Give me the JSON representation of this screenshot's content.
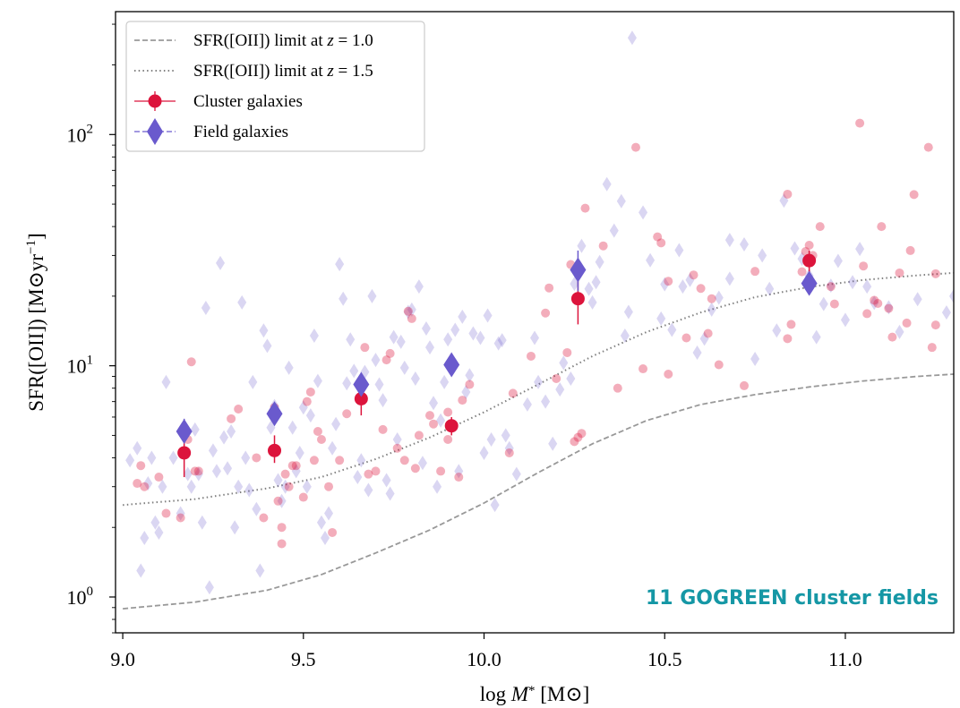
{
  "chart_data": {
    "type": "scatter",
    "xlabel_prefix": "log ",
    "xlabel_var": "M",
    "xlabel_sub": "*",
    "xlabel_unit": " [M⊙]",
    "ylabel_main": "SFR([OII]) [M⊙yr",
    "ylabel_exp": "−1",
    "ylabel_close": "]",
    "xlim": [
      8.98,
      11.3
    ],
    "ylim": [
      0.7,
      340
    ],
    "yscale": "log",
    "x_ticks": [
      "9.0",
      "9.5",
      "10.0",
      "10.5",
      "11.0"
    ],
    "y_ticks": [
      {
        "value": 1,
        "base": "10",
        "exp": "0"
      },
      {
        "value": 10,
        "base": "10",
        "exp": "1"
      },
      {
        "value": 100,
        "base": "10",
        "exp": "2"
      }
    ],
    "annotation": "11 GOGREEN cluster fields",
    "annotation_color": "#1597a5",
    "legend": {
      "position": "top-left",
      "entries": [
        {
          "label_pre": "SFR([OII]) limit at ",
          "label_var": "z",
          "label_post": " = 1.0",
          "style": "dashed",
          "color": "#999999"
        },
        {
          "label_pre": "SFR([OII]) limit at ",
          "label_var": "z",
          "label_post": " = 1.5",
          "style": "dotted",
          "color": "#808080"
        },
        {
          "label_pre": "Cluster galaxies",
          "label_var": "",
          "label_post": "",
          "style": "circle",
          "color": "#dc143c"
        },
        {
          "label_pre": "Field galaxies",
          "label_var": "",
          "label_post": "",
          "style": "diamond",
          "color": "#6a5acd"
        }
      ]
    },
    "limit_curves": [
      {
        "name": "z=1.0",
        "style": "dashed",
        "color": "#999999",
        "x": [
          9.0,
          9.2,
          9.4,
          9.55,
          9.7,
          9.85,
          10.0,
          10.15,
          10.3,
          10.45,
          10.6,
          10.75,
          10.9,
          11.05,
          11.2,
          11.3
        ],
        "y": [
          0.89,
          0.95,
          1.07,
          1.25,
          1.55,
          1.95,
          2.55,
          3.45,
          4.6,
          5.8,
          6.8,
          7.5,
          8.1,
          8.6,
          9.0,
          9.2
        ]
      },
      {
        "name": "z=1.5",
        "style": "dotted",
        "color": "#808080",
        "x": [
          9.0,
          9.2,
          9.4,
          9.55,
          9.7,
          9.85,
          10.0,
          10.15,
          10.3,
          10.45,
          10.6,
          10.75,
          10.9,
          11.05,
          11.2,
          11.3
        ],
        "y": [
          2.5,
          2.65,
          2.95,
          3.3,
          3.95,
          4.9,
          6.3,
          8.3,
          11.0,
          14.0,
          17.0,
          19.8,
          21.9,
          23.5,
          24.6,
          25.2
        ]
      }
    ],
    "cluster_points": {
      "color": "#dc143c",
      "alpha": 0.35,
      "x": [
        9.04,
        9.05,
        9.06,
        9.1,
        9.12,
        9.16,
        9.18,
        9.19,
        9.2,
        9.21,
        9.3,
        9.32,
        9.37,
        9.39,
        9.42,
        9.43,
        9.44,
        9.44,
        9.45,
        9.46,
        9.47,
        9.48,
        9.5,
        9.51,
        9.52,
        9.53,
        9.54,
        9.55,
        9.57,
        9.58,
        9.6,
        9.62,
        9.67,
        9.68,
        9.7,
        9.72,
        9.73,
        9.74,
        9.76,
        9.78,
        9.79,
        9.8,
        9.81,
        9.82,
        9.85,
        9.86,
        9.88,
        9.9,
        9.9,
        9.93,
        9.94,
        9.96,
        10.07,
        10.08,
        10.13,
        10.17,
        10.18,
        10.2,
        10.23,
        10.24,
        10.25,
        10.26,
        10.27,
        10.28,
        10.33,
        10.37,
        10.42,
        10.44,
        10.48,
        10.49,
        10.51,
        10.51,
        10.56,
        10.58,
        10.6,
        10.62,
        10.63,
        10.65,
        10.72,
        10.75,
        10.84,
        10.84,
        10.85,
        10.88,
        10.89,
        10.9,
        10.91,
        10.93,
        10.96,
        10.97,
        11.04,
        11.05,
        11.06,
        11.08,
        11.09,
        11.1,
        11.12,
        11.13,
        11.15,
        11.17,
        11.18,
        11.19,
        11.23,
        11.24,
        11.25,
        11.25
      ],
      "y": [
        3.1,
        3.7,
        3.0,
        3.3,
        2.3,
        2.2,
        4.8,
        10.4,
        3.5,
        3.5,
        5.9,
        6.5,
        4.0,
        2.2,
        6.6,
        2.6,
        1.7,
        2.0,
        3.4,
        3.0,
        3.7,
        3.7,
        2.7,
        7.0,
        7.7,
        3.9,
        5.2,
        4.8,
        3.0,
        1.9,
        3.9,
        6.2,
        12.0,
        3.4,
        3.5,
        5.3,
        10.6,
        11.3,
        4.4,
        3.9,
        17.2,
        16.0,
        3.6,
        5.0,
        6.1,
        5.6,
        3.5,
        4.8,
        6.3,
        3.3,
        7.1,
        8.3,
        4.2,
        7.6,
        11.0,
        16.9,
        21.7,
        8.8,
        11.4,
        27.4,
        4.7,
        4.9,
        5.1,
        48.0,
        33.0,
        8.0,
        88.0,
        9.7,
        36.1,
        34.0,
        9.2,
        23.2,
        13.2,
        24.7,
        21.6,
        13.8,
        19.5,
        10.1,
        8.2,
        25.6,
        13.1,
        55.2,
        15.1,
        25.5,
        31.2,
        33.2,
        30.0,
        40.0,
        22.0,
        18.5,
        112.0,
        27.0,
        16.8,
        19.2,
        18.6,
        40.0,
        17.7,
        13.3,
        25.2,
        15.3,
        31.5,
        55.0,
        88.0,
        12.0,
        25.0,
        15.0
      ]
    },
    "field_points": {
      "color": "#6a5acd",
      "alpha": 0.25,
      "x": [
        9.02,
        9.04,
        9.05,
        9.06,
        9.07,
        9.08,
        9.09,
        9.1,
        9.11,
        9.12,
        9.14,
        9.16,
        9.18,
        9.19,
        9.2,
        9.21,
        9.22,
        9.23,
        9.24,
        9.25,
        9.26,
        9.27,
        9.28,
        9.29,
        9.3,
        9.31,
        9.32,
        9.33,
        9.34,
        9.35,
        9.36,
        9.37,
        9.38,
        9.39,
        9.4,
        9.41,
        9.42,
        9.43,
        9.44,
        9.45,
        9.46,
        9.47,
        9.48,
        9.49,
        9.5,
        9.51,
        9.52,
        9.53,
        9.54,
        9.55,
        9.56,
        9.57,
        9.58,
        9.59,
        9.6,
        9.61,
        9.62,
        9.63,
        9.64,
        9.65,
        9.66,
        9.67,
        9.68,
        9.69,
        9.7,
        9.71,
        9.72,
        9.73,
        9.74,
        9.75,
        9.76,
        9.77,
        9.78,
        9.79,
        9.8,
        9.81,
        9.82,
        9.83,
        9.84,
        9.85,
        9.86,
        9.87,
        9.88,
        9.89,
        9.9,
        9.92,
        9.93,
        9.94,
        9.95,
        9.96,
        9.97,
        9.99,
        10.0,
        10.01,
        10.02,
        10.03,
        10.04,
        10.05,
        10.06,
        10.07,
        10.09,
        10.12,
        10.14,
        10.15,
        10.17,
        10.19,
        10.21,
        10.22,
        10.24,
        10.25,
        10.27,
        10.29,
        10.3,
        10.31,
        10.32,
        10.34,
        10.36,
        10.38,
        10.39,
        10.4,
        10.41,
        10.44,
        10.46,
        10.49,
        10.5,
        10.52,
        10.54,
        10.55,
        10.57,
        10.59,
        10.61,
        10.63,
        10.65,
        10.68,
        10.68,
        10.72,
        10.75,
        10.77,
        10.79,
        10.81,
        10.83,
        10.86,
        10.88,
        10.9,
        10.92,
        10.94,
        10.96,
        10.98,
        11.0,
        11.02,
        11.04,
        11.06,
        11.08,
        11.12,
        11.15,
        11.2,
        11.28,
        11.3
      ],
      "y": [
        3.9,
        4.4,
        1.3,
        1.8,
        3.1,
        4.0,
        2.1,
        1.9,
        3.0,
        8.5,
        4.0,
        2.3,
        3.4,
        3.0,
        5.3,
        3.4,
        2.1,
        17.8,
        1.1,
        4.3,
        3.5,
        27.8,
        4.9,
        3.6,
        5.2,
        2.0,
        3.0,
        18.8,
        4.0,
        2.9,
        8.5,
        2.4,
        1.3,
        14.2,
        12.2,
        5.4,
        6.7,
        3.2,
        2.6,
        3.0,
        9.8,
        5.4,
        3.5,
        4.2,
        6.6,
        3.0,
        6.1,
        13.5,
        8.6,
        2.1,
        1.8,
        2.3,
        4.4,
        5.6,
        27.5,
        19.5,
        8.4,
        13.0,
        9.5,
        3.3,
        3.9,
        9.4,
        2.9,
        20.0,
        10.6,
        8.3,
        7.1,
        3.2,
        2.8,
        13.3,
        4.8,
        12.7,
        9.8,
        17.1,
        17.5,
        8.8,
        22.0,
        3.8,
        14.5,
        12.0,
        6.9,
        3.0,
        5.8,
        8.5,
        13.0,
        14.3,
        3.5,
        16.3,
        7.7,
        9.1,
        13.8,
        13.2,
        4.2,
        16.5,
        4.8,
        2.5,
        12.5,
        12.9,
        5.0,
        4.4,
        3.4,
        6.8,
        13.2,
        8.5,
        7.0,
        4.6,
        7.9,
        10.3,
        8.8,
        22.6,
        33.0,
        21.5,
        18.8,
        23.0,
        28.1,
        61.0,
        38.4,
        51.5,
        13.5,
        17.1,
        262.0,
        46.0,
        28.6,
        16.0,
        22.5,
        14.3,
        31.6,
        22.0,
        23.5,
        11.4,
        13.1,
        17.5,
        19.7,
        23.8,
        35.0,
        33.5,
        10.7,
        30.0,
        21.5,
        14.2,
        51.8,
        32.2,
        29.0,
        24.5,
        13.3,
        18.5,
        22.2,
        28.4,
        15.8,
        23.0,
        32.0,
        22.0,
        18.7,
        17.9,
        14.0,
        19.4,
        17.0,
        20.0
      ]
    },
    "cluster_median": {
      "color": "#dc143c",
      "x": [
        9.17,
        9.42,
        9.66,
        9.91,
        10.26,
        10.9
      ],
      "y": [
        4.2,
        4.3,
        7.2,
        5.5,
        19.5,
        28.5
      ],
      "y_low": [
        3.3,
        3.8,
        6.1,
        5.0,
        15.1,
        24.8
      ],
      "y_high": [
        4.8,
        5.0,
        8.2,
        6.0,
        23.5,
        31.5
      ]
    },
    "field_median": {
      "color": "#6a5acd",
      "x": [
        9.17,
        9.42,
        9.66,
        9.91,
        10.26,
        10.9
      ],
      "y": [
        5.2,
        6.2,
        8.3,
        10.1,
        26.0,
        22.7
      ],
      "y_low": [
        4.7,
        5.6,
        7.6,
        9.1,
        21.0,
        20.7
      ],
      "y_high": [
        5.9,
        6.8,
        9.0,
        11.1,
        31.5,
        24.8
      ]
    }
  }
}
